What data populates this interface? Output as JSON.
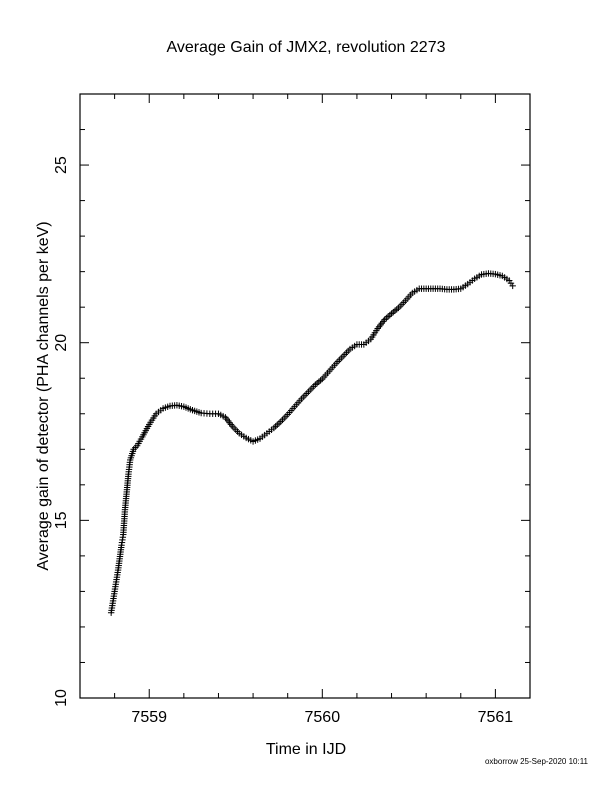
{
  "chart_data": {
    "type": "scatter",
    "title": "Average Gain of JMX2, revolution 2273",
    "xlabel": "Time in IJD",
    "ylabel": "Average gain of detector (PHA channels per keV)",
    "xlim": [
      7558.6,
      7561.2
    ],
    "ylim": [
      10,
      27
    ],
    "x_ticks": [
      "7559",
      "7560",
      "7561"
    ],
    "x_tick_values": [
      7559,
      7560,
      7561
    ],
    "y_ticks": [
      "10",
      "15",
      "20",
      "25"
    ],
    "y_tick_values": [
      10,
      15,
      20,
      25
    ],
    "marker": "plus",
    "grid": false,
    "series": [
      {
        "points": [
          [
            7558.78,
            12.4
          ],
          [
            7558.8,
            13.0
          ],
          [
            7558.82,
            13.6
          ],
          [
            7558.84,
            14.3
          ],
          [
            7558.85,
            14.6
          ],
          [
            7558.86,
            15.3
          ],
          [
            7558.87,
            15.8
          ],
          [
            7558.88,
            16.3
          ],
          [
            7558.89,
            16.7
          ],
          [
            7558.91,
            17.0
          ],
          [
            7558.93,
            17.1
          ],
          [
            7558.96,
            17.35
          ],
          [
            7559.0,
            17.7
          ],
          [
            7559.04,
            18.0
          ],
          [
            7559.08,
            18.15
          ],
          [
            7559.12,
            18.22
          ],
          [
            7559.16,
            18.24
          ],
          [
            7559.2,
            18.2
          ],
          [
            7559.25,
            18.1
          ],
          [
            7559.3,
            18.02
          ],
          [
            7559.35,
            18.0
          ],
          [
            7559.4,
            18.0
          ],
          [
            7559.44,
            17.9
          ],
          [
            7559.48,
            17.65
          ],
          [
            7559.52,
            17.45
          ],
          [
            7559.56,
            17.32
          ],
          [
            7559.6,
            17.22
          ],
          [
            7559.64,
            17.3
          ],
          [
            7559.68,
            17.45
          ],
          [
            7559.72,
            17.6
          ],
          [
            7559.76,
            17.78
          ],
          [
            7559.8,
            17.98
          ],
          [
            7559.84,
            18.2
          ],
          [
            7559.88,
            18.42
          ],
          [
            7559.92,
            18.62
          ],
          [
            7559.96,
            18.82
          ],
          [
            7560.0,
            18.98
          ],
          [
            7560.04,
            19.2
          ],
          [
            7560.08,
            19.42
          ],
          [
            7560.12,
            19.62
          ],
          [
            7560.16,
            19.82
          ],
          [
            7560.2,
            19.95
          ],
          [
            7560.24,
            19.95
          ],
          [
            7560.28,
            20.1
          ],
          [
            7560.32,
            20.4
          ],
          [
            7560.36,
            20.65
          ],
          [
            7560.4,
            20.82
          ],
          [
            7560.44,
            20.98
          ],
          [
            7560.48,
            21.18
          ],
          [
            7560.52,
            21.4
          ],
          [
            7560.56,
            21.52
          ],
          [
            7560.6,
            21.52
          ],
          [
            7560.64,
            21.52
          ],
          [
            7560.68,
            21.52
          ],
          [
            7560.72,
            21.5
          ],
          [
            7560.76,
            21.5
          ],
          [
            7560.8,
            21.52
          ],
          [
            7560.84,
            21.65
          ],
          [
            7560.88,
            21.8
          ],
          [
            7560.92,
            21.92
          ],
          [
            7560.96,
            21.95
          ],
          [
            7561.0,
            21.93
          ],
          [
            7561.04,
            21.88
          ],
          [
            7561.08,
            21.75
          ],
          [
            7561.1,
            21.6
          ]
        ]
      }
    ]
  },
  "footer": "oxborrow 25-Sep-2020 10:11"
}
